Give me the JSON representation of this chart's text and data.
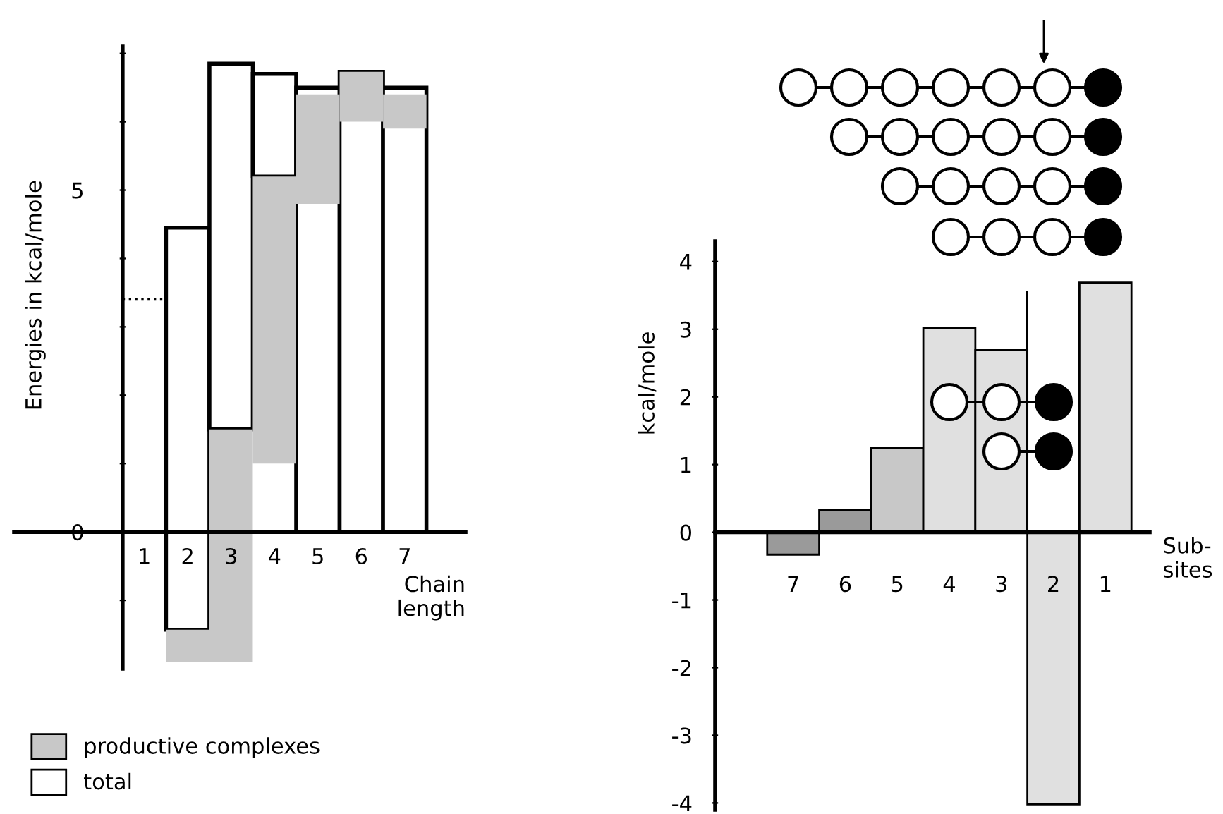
{
  "chart_data": [
    {
      "type": "bar",
      "categories": [
        "1",
        "2",
        "3",
        "4",
        "5",
        "6",
        "7"
      ],
      "xlabel": "Chain\nlength",
      "ylabel": "Energies in kcal/mole",
      "ylim": [
        -2.0,
        7.1
      ],
      "yticks": [
        {
          "value": -1,
          "label": null
        },
        0,
        {
          "value": 1,
          "label": null
        },
        {
          "value": 2,
          "label": null
        },
        {
          "value": 3,
          "label": null
        },
        {
          "value": 4,
          "label": null
        },
        5,
        {
          "value": 6,
          "label": null
        },
        {
          "value": 7,
          "label": null
        }
      ],
      "series": [
        {
          "name": "total",
          "color": "#ffffff",
          "values": [
            null,
            5.88,
            5.35,
            1.5,
            6.5,
            6.73,
            6.5
          ],
          "base": [
            null,
            -1.43,
            1.5,
            5.2,
            0,
            0,
            0
          ]
        },
        {
          "name": "productive complexes",
          "color": "#c8c8c8",
          "values": [
            null,
            0.47,
            3.4,
            4.2,
            1.6,
            0.73,
            0.5
          ],
          "base": [
            null,
            -1.9,
            -1.9,
            1.0,
            4.8,
            6.0,
            5.9
          ]
        }
      ],
      "ref_lines": [
        {
          "axis": "y",
          "value": 3.4,
          "line_style": "dotted",
          "color": "#000000"
        }
      ],
      "grid": false,
      "legend": "bottom left"
    },
    {
      "type": "bar",
      "categories": [
        "7",
        "6",
        "5",
        "4",
        "3",
        "2",
        "1"
      ],
      "xlabel": "Sub-\nsites",
      "ylabel": "kcal/mole",
      "ylim": [
        -4.1,
        4.3
      ],
      "yticks": [
        -4,
        -3,
        -2,
        -1,
        0,
        1,
        2,
        3,
        4
      ],
      "values": [
        -0.33,
        0.33,
        1.25,
        3.02,
        2.69,
        -4.02,
        3.69
      ],
      "colors": [
        "#9a9a9a",
        "#9a9a9a",
        "#c8c8c8",
        "#e0e0e0",
        "#e0e0e0",
        "#e0e0e0",
        "#e0e0e0"
      ],
      "grid": false,
      "legend": false
    }
  ]
}
